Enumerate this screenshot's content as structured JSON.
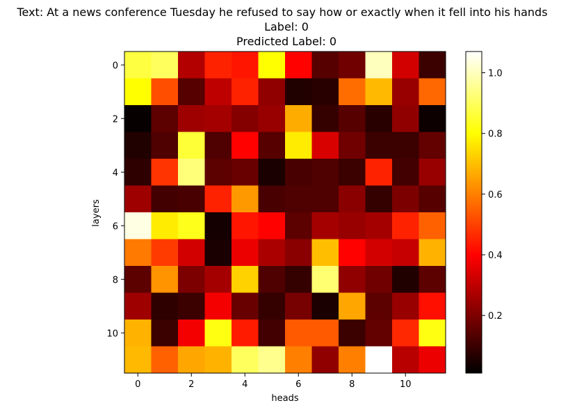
{
  "chart_data": {
    "type": "heatmap",
    "title_lines": [
      "Text: At a news conference Tuesday he refused to say how or exactly when it fell into his hands",
      "Label: 0",
      "Predicted Label: 0"
    ],
    "xlabel": "heads",
    "ylabel": "layers",
    "x_ticks": [
      0,
      2,
      4,
      6,
      8,
      10
    ],
    "y_ticks": [
      0,
      2,
      4,
      6,
      8,
      10
    ],
    "colormap": "hot",
    "colorbar_range": [
      0.01,
      1.07
    ],
    "colorbar_ticks": [
      0.2,
      0.4,
      0.6,
      0.8,
      1.0
    ],
    "colorbar_tick_labels": [
      "0.2",
      "0.4",
      "0.6",
      "0.8",
      "1.0"
    ],
    "values": [
      [
        0.87,
        0.9,
        0.28,
        0.45,
        0.43,
        0.8,
        0.4,
        0.14,
        0.18,
        1.0,
        0.33,
        0.1
      ],
      [
        0.8,
        0.52,
        0.14,
        0.3,
        0.45,
        0.23,
        0.06,
        0.07,
        0.57,
        0.69,
        0.24,
        0.56
      ],
      [
        0.02,
        0.15,
        0.25,
        0.26,
        0.21,
        0.24,
        0.67,
        0.09,
        0.14,
        0.07,
        0.23,
        0.03
      ],
      [
        0.06,
        0.13,
        0.86,
        0.13,
        0.4,
        0.14,
        0.77,
        0.34,
        0.18,
        0.1,
        0.1,
        0.16
      ],
      [
        0.08,
        0.48,
        0.93,
        0.15,
        0.17,
        0.05,
        0.12,
        0.13,
        0.1,
        0.45,
        0.11,
        0.24
      ],
      [
        0.25,
        0.11,
        0.12,
        0.45,
        0.64,
        0.12,
        0.13,
        0.13,
        0.22,
        0.09,
        0.2,
        0.14
      ],
      [
        1.04,
        0.77,
        0.83,
        0.04,
        0.43,
        0.4,
        0.15,
        0.26,
        0.24,
        0.26,
        0.45,
        0.55
      ],
      [
        0.59,
        0.49,
        0.33,
        0.05,
        0.37,
        0.27,
        0.22,
        0.7,
        0.4,
        0.33,
        0.31,
        0.68
      ],
      [
        0.15,
        0.63,
        0.2,
        0.26,
        0.73,
        0.13,
        0.09,
        0.92,
        0.23,
        0.18,
        0.06,
        0.15
      ],
      [
        0.25,
        0.08,
        0.1,
        0.38,
        0.17,
        0.09,
        0.19,
        0.05,
        0.66,
        0.15,
        0.24,
        0.42
      ],
      [
        0.68,
        0.1,
        0.38,
        0.82,
        0.44,
        0.11,
        0.54,
        0.54,
        0.1,
        0.16,
        0.46,
        0.82
      ],
      [
        0.69,
        0.55,
        0.66,
        0.68,
        0.9,
        0.95,
        0.6,
        0.23,
        0.6,
        1.07,
        0.29,
        0.37
      ]
    ]
  }
}
